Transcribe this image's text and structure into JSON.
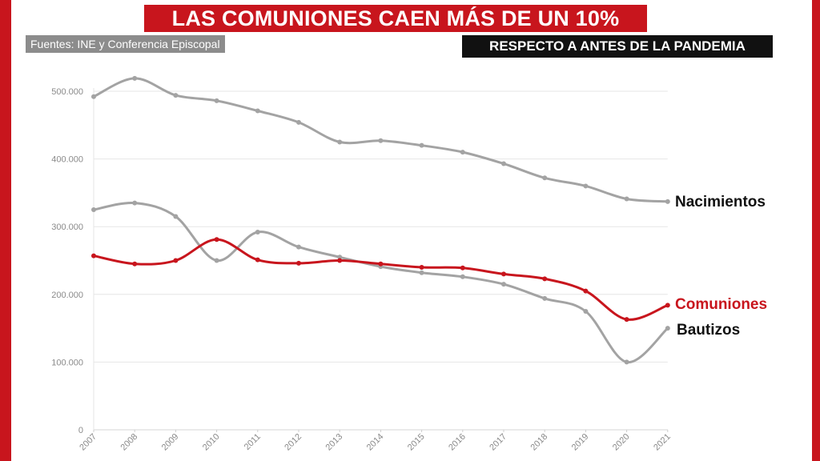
{
  "header": {
    "title": "LAS COMUNIONES CAEN MÁS DE UN 10%",
    "source": "Fuentes: INE y Conferencia Episcopal",
    "subtitle": "RESPECTO A ANTES DE LA PANDEMIA"
  },
  "colors": {
    "accent": "#c8151d",
    "gray_series": "#a3a3a3",
    "grid": "#e6e6e6"
  },
  "chart_data": {
    "type": "line",
    "title": "LAS COMUNIONES CAEN MÁS DE UN 10%",
    "subtitle": "RESPECTO A ANTES DE LA PANDEMIA",
    "xlabel": "",
    "ylabel": "",
    "x": [
      "2007",
      "2008",
      "2009",
      "2010",
      "2011",
      "2012",
      "2013",
      "2014",
      "2015",
      "2016",
      "2017",
      "2018",
      "2019",
      "2020",
      "2021"
    ],
    "ylim": [
      0,
      500000
    ],
    "yticks": [
      0,
      100000,
      200000,
      300000,
      400000,
      500000
    ],
    "ytick_labels": [
      "0",
      "100.000",
      "200.000",
      "300.000",
      "400.000",
      "500.000"
    ],
    "grid": true,
    "legend": "direct labels at right end of lines",
    "series": [
      {
        "name": "Nacimientos",
        "color": "#a3a3a3",
        "values": [
          492000,
          519000,
          494000,
          486000,
          471000,
          454000,
          425000,
          427000,
          420000,
          410000,
          393000,
          372000,
          360000,
          341000,
          337000
        ]
      },
      {
        "name": "Comuniones",
        "color": "#c8151d",
        "values": [
          257000,
          245000,
          250000,
          281000,
          251000,
          246000,
          250000,
          245000,
          240000,
          239000,
          230000,
          223000,
          205000,
          163000,
          184000
        ]
      },
      {
        "name": "Bautizos",
        "color": "#a3a3a3",
        "values": [
          325000,
          335000,
          315000,
          250000,
          292000,
          270000,
          255000,
          241000,
          232000,
          226000,
          215000,
          194000,
          175000,
          100000,
          150000
        ]
      }
    ]
  }
}
